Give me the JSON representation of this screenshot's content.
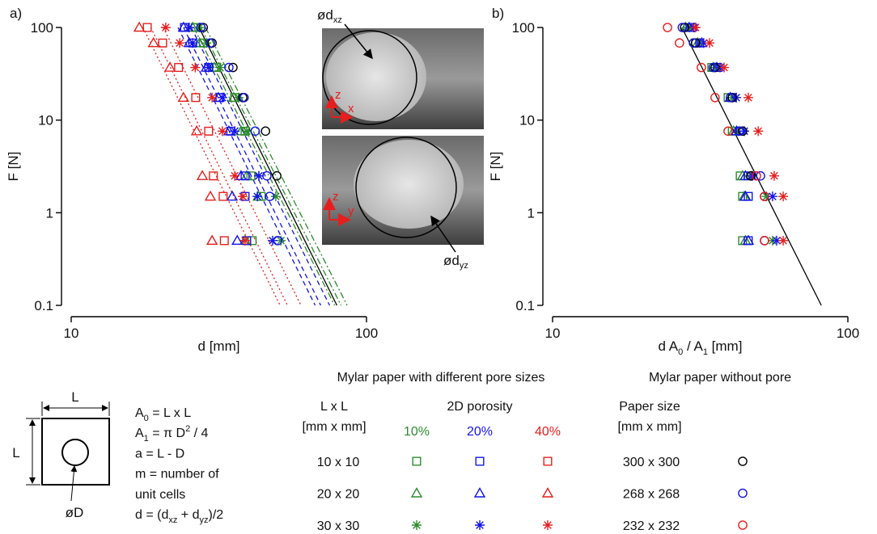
{
  "chart_data": [
    {
      "type": "scatter",
      "panel_label": "a)",
      "xlabel": "d [mm]",
      "ylabel": "F [N]",
      "log_x": true,
      "log_y": true,
      "xlim": [
        10,
        100
      ],
      "xticks": [
        10,
        100
      ],
      "ylim": [
        0.1,
        100
      ],
      "yticks": [
        0.1,
        1,
        10,
        100
      ],
      "y": [
        100,
        68,
        37,
        17.5,
        7.6,
        2.5,
        1.5,
        0.5
      ],
      "series": [
        {
          "marker": "square",
          "color": "#2e8b2e",
          "x": [
            26.3,
            28.0,
            31.1,
            35.8,
            38.8,
            40.6,
            44.0,
            41.0
          ]
        },
        {
          "marker": "triangle",
          "color": "#2e8b2e",
          "x": [
            25.8,
            27.2,
            30.5,
            35.5,
            37.6,
            39.3,
            43.0,
            38.8
          ]
        },
        {
          "marker": "star",
          "color": "#2e8b2e",
          "x": [
            27.2,
            28.7,
            31.9,
            36.9,
            39.3,
            43.2,
            49.3,
            51.3
          ]
        },
        {
          "marker": "square",
          "color": "#1414e6",
          "x": [
            24.2,
            25.8,
            29.2,
            31.9,
            34.7,
            38.8,
            38.8,
            39.3
          ]
        },
        {
          "marker": "triangle",
          "color": "#1414e6",
          "x": [
            24.0,
            25.1,
            28.7,
            31.5,
            34.2,
            37.6,
            35.1,
            36.5
          ]
        },
        {
          "marker": "star",
          "color": "#1414e6",
          "x": [
            25.1,
            25.8,
            29.2,
            32.5,
            35.8,
            43.2,
            42.7,
            48.1
          ]
        },
        {
          "marker": "square",
          "color": "#e61e1e",
          "x": [
            18.1,
            20.4,
            23.1,
            26.4,
            29.2,
            30.3,
            32.7,
            33.0
          ]
        },
        {
          "marker": "triangle",
          "color": "#e61e1e",
          "x": [
            17.0,
            19.0,
            21.6,
            24.0,
            26.6,
            27.8,
            29.6,
            30.0
          ]
        },
        {
          "marker": "star",
          "color": "#e61e1e",
          "x": [
            20.9,
            23.3,
            26.3,
            30.0,
            32.5,
            35.8,
            38.1,
            38.8
          ]
        },
        {
          "marker": "circle",
          "color": "#000000",
          "x": [
            28.0,
            30.0,
            35.3,
            38.1,
            45.5,
            49.7,
            null,
            null
          ]
        },
        {
          "marker": "circle",
          "color": "#1414e6",
          "x": [
            27.5,
            29.6,
            34.2,
            38.5,
            42.0,
            46.0,
            47.0,
            50.0
          ]
        }
      ],
      "lines": [
        {
          "color": "#000000",
          "style": "solid",
          "x": [
            27.1,
            79.4
          ],
          "y": [
            100,
            0.1
          ]
        },
        {
          "color": "#e61e1e",
          "style": "dotted",
          "x": [
            17.5,
            51
          ],
          "y": [
            100,
            0.1
          ]
        },
        {
          "color": "#e61e1e",
          "style": "dotted",
          "x": [
            18.6,
            54
          ],
          "y": [
            100,
            0.1
          ]
        },
        {
          "color": "#e61e1e",
          "style": "dotted",
          "x": [
            20.5,
            60
          ],
          "y": [
            100,
            0.1
          ]
        },
        {
          "color": "#1414e6",
          "style": "dashed",
          "x": [
            23,
            67
          ],
          "y": [
            100,
            0.1
          ]
        },
        {
          "color": "#1414e6",
          "style": "dashed",
          "x": [
            24,
            70
          ],
          "y": [
            100,
            0.1
          ]
        },
        {
          "color": "#1414e6",
          "style": "dashed",
          "x": [
            25.5,
            75
          ],
          "y": [
            100,
            0.1
          ]
        },
        {
          "color": "#2e8b2e",
          "style": "dashdot",
          "x": [
            26,
            78
          ],
          "y": [
            100,
            0.1
          ]
        },
        {
          "color": "#2e8b2e",
          "style": "dashdot",
          "x": [
            27.5,
            82
          ],
          "y": [
            100,
            0.1
          ]
        },
        {
          "color": "#2e8b2e",
          "style": "dashdot",
          "x": [
            28.5,
            86
          ],
          "y": [
            100,
            0.1
          ]
        }
      ]
    },
    {
      "type": "scatter",
      "panel_label": "b)",
      "xlabel": [
        {
          "t": "d A"
        },
        {
          "sub": "0"
        },
        {
          "t": " / A"
        },
        {
          "sub": "1"
        },
        {
          "t": " [mm]"
        }
      ],
      "ylabel": "F [N]",
      "log_x": true,
      "log_y": true,
      "xlim": [
        10,
        100
      ],
      "xticks": [
        10,
        100
      ],
      "ylim": [
        0.1,
        100
      ],
      "yticks": [
        0.1,
        1,
        10,
        100
      ],
      "y": [
        100,
        68,
        37,
        17.5,
        7.6,
        2.5,
        1.5,
        0.5
      ],
      "series": [
        {
          "marker": "square",
          "color": "#2e8b2e",
          "x": [
            28.7,
            30.5,
            34.6,
            39.3,
            40.6,
            43.2,
            44.0,
            44.0
          ]
        },
        {
          "marker": "triangle",
          "color": "#2e8b2e",
          "x": [
            28.2,
            31.0,
            35.0,
            40.0,
            41.0,
            44.0,
            44.6,
            45.0
          ]
        },
        {
          "marker": "star",
          "color": "#2e8b2e",
          "x": [
            29.0,
            31.5,
            35.5,
            40.6,
            42.5,
            47.0,
            53.0,
            55.6
          ]
        },
        {
          "marker": "square",
          "color": "#1414e6",
          "x": [
            29.6,
            31.5,
            36.2,
            40.6,
            43.2,
            46.0,
            46.0,
            46.0
          ]
        },
        {
          "marker": "triangle",
          "color": "#1414e6",
          "x": [
            29.0,
            32.0,
            36.0,
            40.0,
            42.0,
            45.0,
            45.0,
            46.0
          ]
        },
        {
          "marker": "star",
          "color": "#1414e6",
          "x": [
            30.1,
            32.5,
            36.9,
            41.9,
            44.6,
            47.5,
            55.6,
            57.4
          ]
        },
        {
          "marker": "star",
          "color": "#e61e1e",
          "x": [
            30.5,
            34.0,
            38.1,
            46.0,
            49.7,
            56.3,
            60.4,
            60.4
          ]
        },
        {
          "marker": "circle",
          "color": "#000000",
          "x": [
            28.0,
            30.5,
            35.5,
            40.6,
            44.0,
            46.9,
            null,
            null
          ]
        },
        {
          "marker": "circle",
          "color": "#1414e6",
          "x": [
            27.5,
            30.0,
            35.0,
            40.0,
            43.0,
            50.6,
            52.2,
            52.2
          ]
        },
        {
          "marker": "circle",
          "color": "#e61e1e",
          "x": [
            24.5,
            26.9,
            31.9,
            35.5,
            39.3,
            49.0,
            52.2,
            52.2
          ]
        }
      ],
      "lines": [
        {
          "color": "#000000",
          "style": "solid",
          "x": [
            27.4,
            81.3
          ],
          "y": [
            100,
            0.1
          ]
        }
      ]
    }
  ],
  "photos": [
    {
      "label": {
        "text": "ød",
        "sub": "xz"
      },
      "axes": [
        "z",
        "x"
      ]
    },
    {
      "label": {
        "text": "ød",
        "sub": "yz"
      },
      "axes": [
        "z",
        "y"
      ]
    }
  ],
  "schematic": {
    "top": "L",
    "left": "L",
    "hole": "øD"
  },
  "formulas": [
    [
      {
        "t": "A"
      },
      {
        "sub": "0"
      },
      {
        "t": " = L x L"
      }
    ],
    [
      {
        "t": "A"
      },
      {
        "sub": "1"
      },
      {
        "t": " = π D"
      },
      {
        "sup": "2"
      },
      {
        "t": " / 4"
      }
    ],
    [
      {
        "t": "a   = L - D"
      }
    ],
    [
      {
        "t": "m  = number of"
      }
    ],
    [
      {
        "t": "unit cells"
      }
    ],
    [
      {
        "t": "d   = (d"
      },
      {
        "sub": "xz"
      },
      {
        "t": " + d"
      },
      {
        "sub": "yz"
      },
      {
        "t": ")/2"
      }
    ]
  ],
  "legend": {
    "left_title": "Mylar paper with different pore sizes",
    "right_title": "Mylar paper without pore",
    "size_header": [
      "L x L",
      "[mm x mm]"
    ],
    "porosity_header": "2D porosity",
    "porosity": [
      {
        "label": "10%",
        "color": "#2e8b2e"
      },
      {
        "label": "20%",
        "color": "#1414e6"
      },
      {
        "label": "40%",
        "color": "#e61e1e"
      }
    ],
    "paper_header": [
      "Paper size",
      "[mm x mm]"
    ],
    "rows": [
      {
        "size": "10 x 10",
        "marker": "square",
        "paper": "300 x 300",
        "paper_color": "#000000"
      },
      {
        "size": "20 x 20",
        "marker": "triangle",
        "paper": "268 x 268",
        "paper_color": "#1414e6"
      },
      {
        "size": "30 x 30",
        "marker": "star",
        "paper": "232 x 232",
        "paper_color": "#e61e1e"
      }
    ]
  }
}
